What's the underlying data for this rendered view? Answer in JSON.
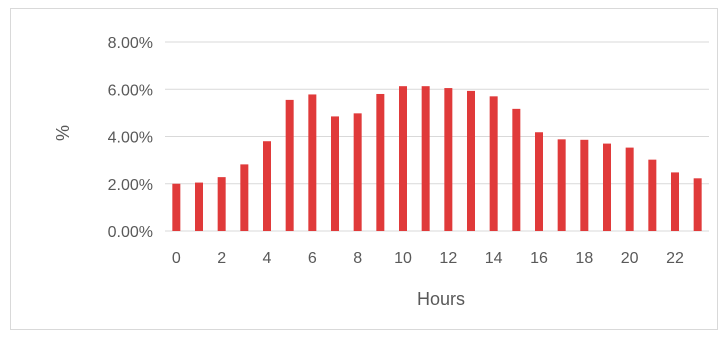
{
  "chart_data": {
    "type": "bar",
    "title": "",
    "xlabel": "Hours",
    "ylabel": "%",
    "categories": [
      0,
      1,
      2,
      3,
      4,
      5,
      6,
      7,
      8,
      9,
      10,
      11,
      12,
      13,
      14,
      15,
      16,
      17,
      18,
      19,
      20,
      21,
      22,
      23
    ],
    "x_tick_labels": [
      "0",
      "2",
      "4",
      "6",
      "8",
      "10",
      "12",
      "14",
      "16",
      "18",
      "20",
      "22"
    ],
    "y_tick_labels": [
      "0.00%",
      "2.00%",
      "4.00%",
      "6.00%",
      "8.00%"
    ],
    "y_ticks": [
      0,
      2,
      4,
      6,
      8
    ],
    "ylim": [
      0,
      8
    ],
    "values": [
      2.0,
      2.05,
      2.28,
      2.82,
      3.8,
      5.55,
      5.78,
      4.85,
      4.98,
      5.8,
      6.13,
      6.13,
      6.05,
      5.93,
      5.7,
      5.17,
      4.18,
      3.88,
      3.86,
      3.7,
      3.53,
      3.02,
      2.48,
      2.23
    ],
    "grid": true,
    "legend": "none",
    "bar_color": "#e03a3a",
    "grid_color": "#d9d9d9"
  }
}
